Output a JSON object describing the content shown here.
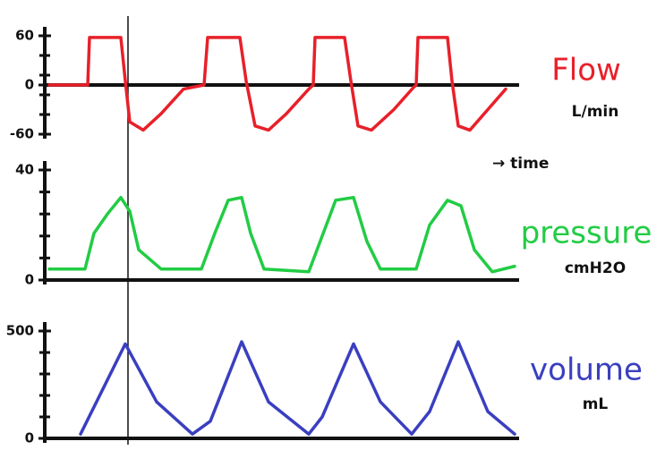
{
  "chart_data": [
    {
      "type": "line",
      "title": "Flow",
      "subtitle": "L/min",
      "annotation": "→ time",
      "ylim": [
        -60,
        60
      ],
      "yticks": [
        60,
        0,
        -60
      ],
      "xlim": [
        0,
        525
      ],
      "grid": false,
      "series": [
        {
          "name": "Flow",
          "color": "#e8202a",
          "x": [
            0,
            43,
            45,
            80,
            85,
            90,
            105,
            125,
            150,
            173,
            177,
            213,
            220,
            230,
            245,
            265,
            290,
            295,
            297,
            330,
            337,
            345,
            360,
            385,
            407,
            410,
            412,
            445,
            450,
            457,
            470,
            490,
            510
          ],
          "values": [
            0,
            0,
            58,
            58,
            5,
            -45,
            -55,
            -35,
            -5,
            0,
            58,
            58,
            5,
            -50,
            -55,
            -35,
            -5,
            0,
            58,
            58,
            5,
            -50,
            -55,
            -30,
            -3,
            0,
            58,
            58,
            5,
            -50,
            -55,
            -30,
            -5
          ]
        }
      ]
    },
    {
      "type": "line",
      "title": "pressure",
      "subtitle": "cmH2O",
      "ylim": [
        0,
        40
      ],
      "yticks": [
        40,
        0
      ],
      "xlim": [
        0,
        525
      ],
      "grid": false,
      "series": [
        {
          "name": "pressure",
          "color": "#22cc44",
          "x": [
            0,
            40,
            50,
            65,
            80,
            90,
            100,
            125,
            170,
            185,
            200,
            215,
            225,
            240,
            290,
            305,
            320,
            340,
            355,
            370,
            410,
            425,
            445,
            460,
            475,
            495,
            520
          ],
          "values": [
            4,
            4,
            17,
            24,
            30,
            25,
            11,
            4,
            4,
            17,
            29,
            30,
            17,
            4,
            3,
            16,
            29,
            30,
            14,
            4,
            4,
            20,
            29,
            27,
            11,
            3,
            5
          ]
        }
      ]
    },
    {
      "type": "line",
      "title": "volume",
      "subtitle": "mL",
      "ylim": [
        0,
        500
      ],
      "yticks": [
        500,
        0
      ],
      "xlim": [
        0,
        525
      ],
      "grid": false,
      "series": [
        {
          "name": "volume",
          "color": "#3a3fc0",
          "x": [
            35,
            85,
            120,
            160,
            180,
            215,
            245,
            290,
            305,
            340,
            370,
            405,
            425,
            457,
            490,
            520
          ],
          "values": [
            20,
            440,
            170,
            20,
            80,
            450,
            170,
            20,
            100,
            440,
            170,
            20,
            125,
            450,
            125,
            20
          ]
        }
      ]
    }
  ]
}
